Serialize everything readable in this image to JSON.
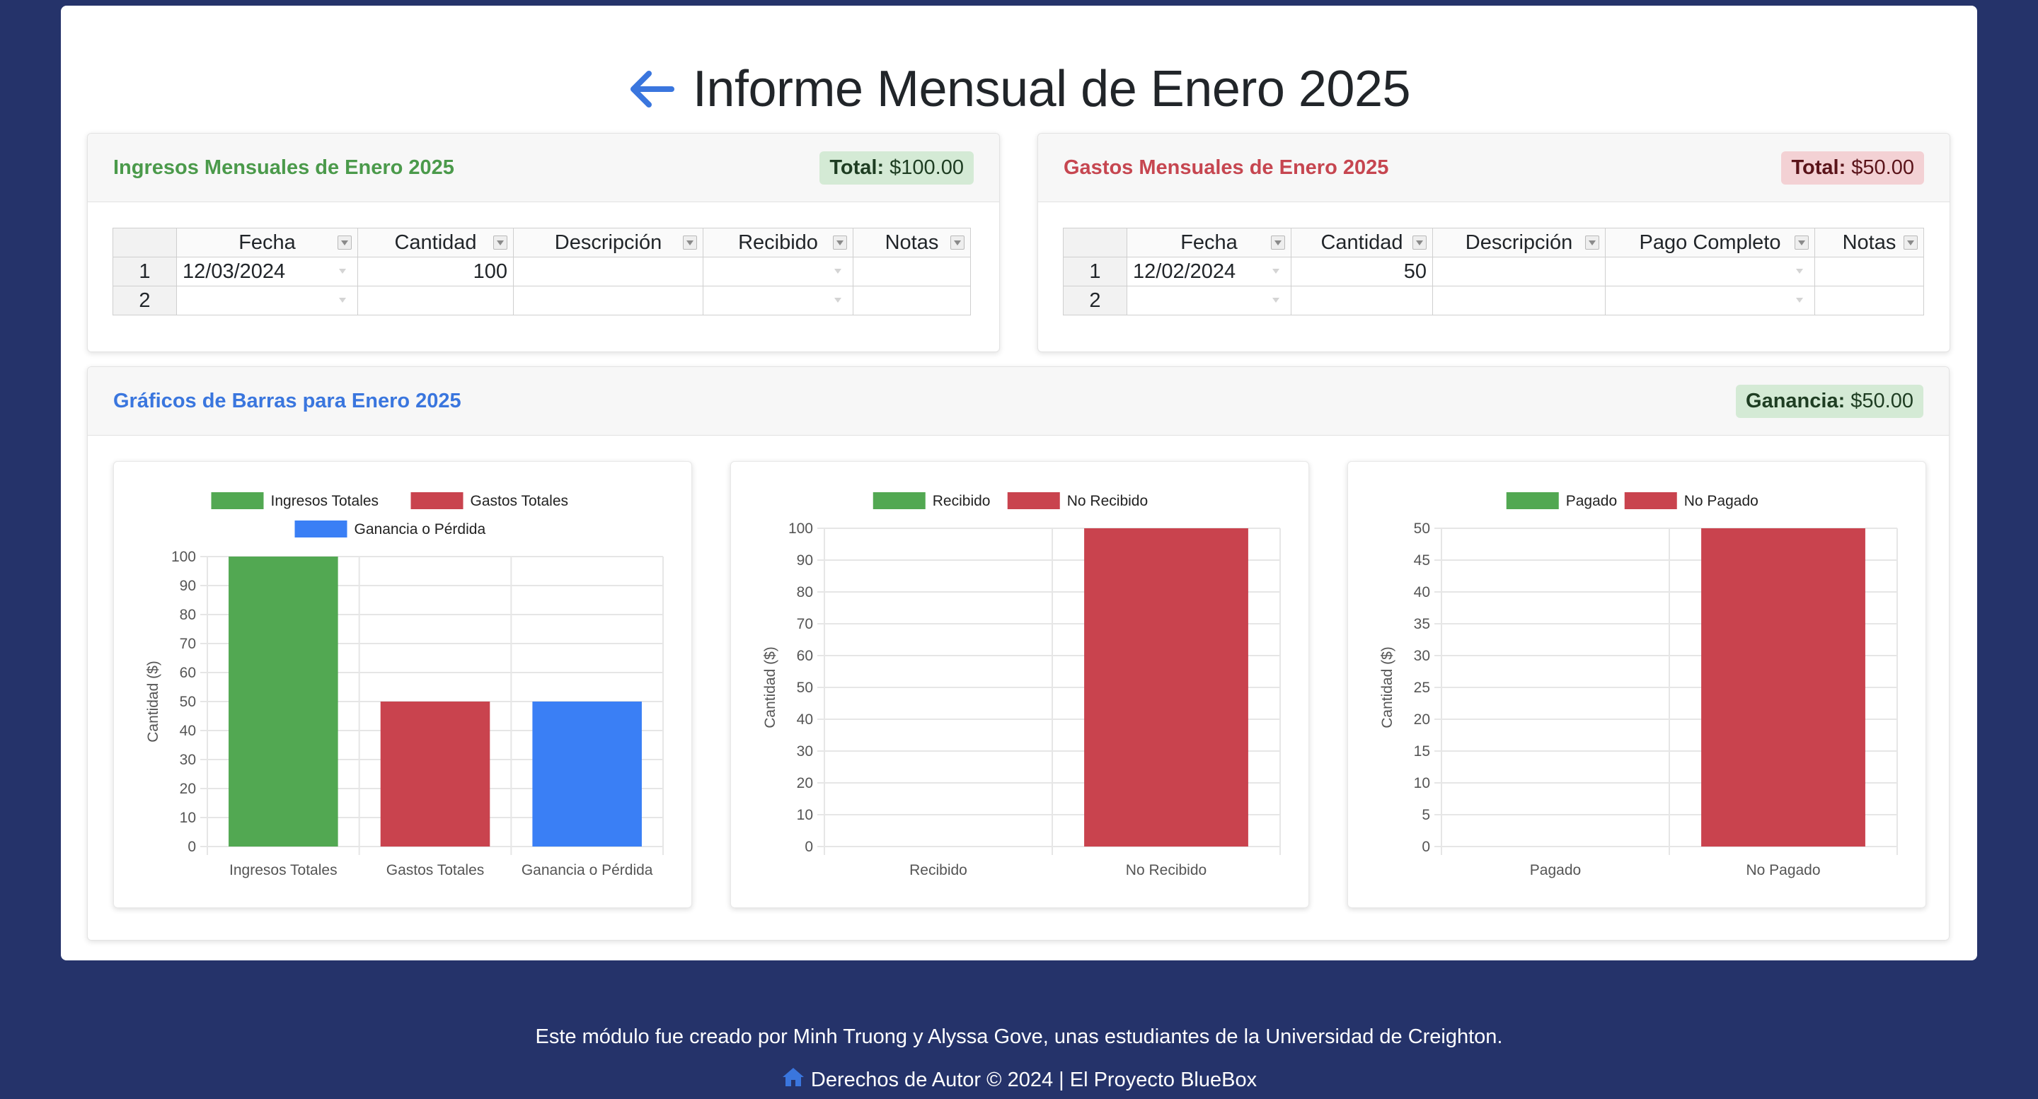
{
  "page": {
    "title": "Informe Mensual de Enero 2025",
    "accent_color": "#3a76de",
    "background_color": "#25336a"
  },
  "income": {
    "title": "Ingresos Mensuales de Enero 2025",
    "total_label": "Total:",
    "total_value": "$100.00",
    "columns": [
      "Fecha",
      "Cantidad",
      "Descripción",
      "Recibido",
      "Notas"
    ],
    "rows": [
      {
        "num": "1",
        "fecha": "12/03/2024",
        "cantidad": "100",
        "descripcion": "",
        "estado": "",
        "notas": ""
      },
      {
        "num": "2",
        "fecha": "",
        "cantidad": "",
        "descripcion": "",
        "estado": "",
        "notas": ""
      }
    ]
  },
  "expenses": {
    "title": "Gastos Mensuales de Enero 2025",
    "total_label": "Total:",
    "total_value": "$50.00",
    "columns": [
      "Fecha",
      "Cantidad",
      "Descripción",
      "Pago Completo",
      "Notas"
    ],
    "rows": [
      {
        "num": "1",
        "fecha": "12/02/2024",
        "cantidad": "50",
        "descripcion": "",
        "estado": "",
        "notas": ""
      },
      {
        "num": "2",
        "fecha": "",
        "cantidad": "",
        "descripcion": "",
        "estado": "",
        "notas": ""
      }
    ]
  },
  "charts_panel": {
    "title": "Gráficos de Barras para Enero 2025",
    "profit_label": "Ganancia:",
    "profit_value": "$50.00"
  },
  "chart_data": [
    {
      "type": "bar",
      "categories": [
        "Ingresos Totales",
        "Gastos Totales",
        "Ganancia o Pérdida"
      ],
      "values": [
        100,
        50,
        50
      ],
      "colors": [
        "#52a852",
        "#c9434e",
        "#3a7ff5"
      ],
      "legend": [
        "Ingresos Totales",
        "Gastos Totales",
        "Ganancia o Pérdida"
      ],
      "ylabel": "Cantidad ($)",
      "ylim": [
        0,
        100
      ],
      "yticks": [
        0,
        10,
        20,
        30,
        40,
        50,
        60,
        70,
        80,
        90,
        100
      ],
      "legend_position": "top",
      "grid": true
    },
    {
      "type": "bar",
      "categories": [
        "Recibido",
        "No Recibido"
      ],
      "values": [
        0,
        100
      ],
      "colors": [
        "#52a852",
        "#c9434e"
      ],
      "legend": [
        "Recibido",
        "No Recibido"
      ],
      "ylabel": "Cantidad ($)",
      "ylim": [
        0,
        100
      ],
      "yticks": [
        0,
        10,
        20,
        30,
        40,
        50,
        60,
        70,
        80,
        90,
        100
      ],
      "legend_position": "top",
      "grid": true
    },
    {
      "type": "bar",
      "categories": [
        "Pagado",
        "No Pagado"
      ],
      "values": [
        0,
        50
      ],
      "colors": [
        "#52a852",
        "#c9434e"
      ],
      "legend": [
        "Pagado",
        "No Pagado"
      ],
      "ylabel": "Cantidad ($)",
      "ylim": [
        0,
        50
      ],
      "yticks": [
        0,
        5,
        10,
        15,
        20,
        25,
        30,
        35,
        40,
        45,
        50
      ],
      "legend_position": "top",
      "grid": true
    }
  ],
  "footer": {
    "credit": "Este módulo fue creado por Minh Truong y Alyssa Gove, unas estudiantes de la Universidad de Creighton.",
    "copyright": "Derechos de Autor © 2024 | El Proyecto BlueBox",
    "home_icon": "home-icon"
  }
}
